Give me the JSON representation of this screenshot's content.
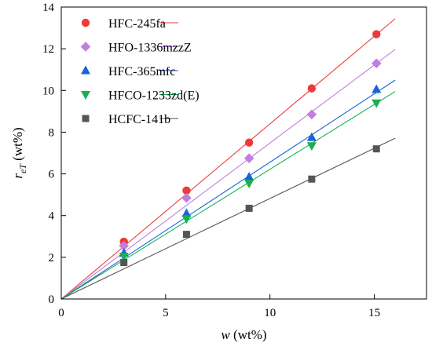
{
  "chart_data": {
    "type": "scatter",
    "xlabel": {
      "var": "w",
      "unit": " (wt%)"
    },
    "ylabel": {
      "var": "r",
      "sub": "eT",
      "unit": " (wt%)"
    },
    "xlim": [
      0,
      17.5
    ],
    "ylim": [
      0,
      14
    ],
    "xticks": [
      0,
      5,
      10,
      15
    ],
    "yticks": [
      0,
      2,
      4,
      6,
      8,
      10,
      12,
      14
    ],
    "grid": false,
    "legend_position": "top-left",
    "x": [
      3,
      6,
      9,
      12,
      15.1
    ],
    "fit_x_range": [
      0,
      16
    ],
    "series": [
      {
        "name": "HFC-245fa",
        "marker": "circle",
        "color": "#ee3a3a",
        "values": [
          2.75,
          5.2,
          7.5,
          10.1,
          12.7
        ],
        "slope": 0.84
      },
      {
        "name": "HFO-1336mzzZ",
        "marker": "diamond",
        "color": "#c07fe0",
        "values": [
          2.55,
          4.85,
          6.75,
          8.85,
          11.3
        ],
        "slope": 0.748
      },
      {
        "name": "HFC-365mfc",
        "marker": "triangle-up",
        "color": "#1565d8",
        "values": [
          2.2,
          4.1,
          5.85,
          7.75,
          10.05
        ],
        "slope": 0.656
      },
      {
        "name": "HFCO-1233zd(E)",
        "marker": "triangle-down",
        "color": "#18b050",
        "values": [
          2.05,
          3.85,
          5.55,
          7.35,
          9.4
        ],
        "slope": 0.622
      },
      {
        "name": "HCFC-141b",
        "marker": "square",
        "color": "#555555",
        "values": [
          1.75,
          3.1,
          4.35,
          5.75,
          7.2
        ],
        "slope": 0.482
      }
    ]
  }
}
